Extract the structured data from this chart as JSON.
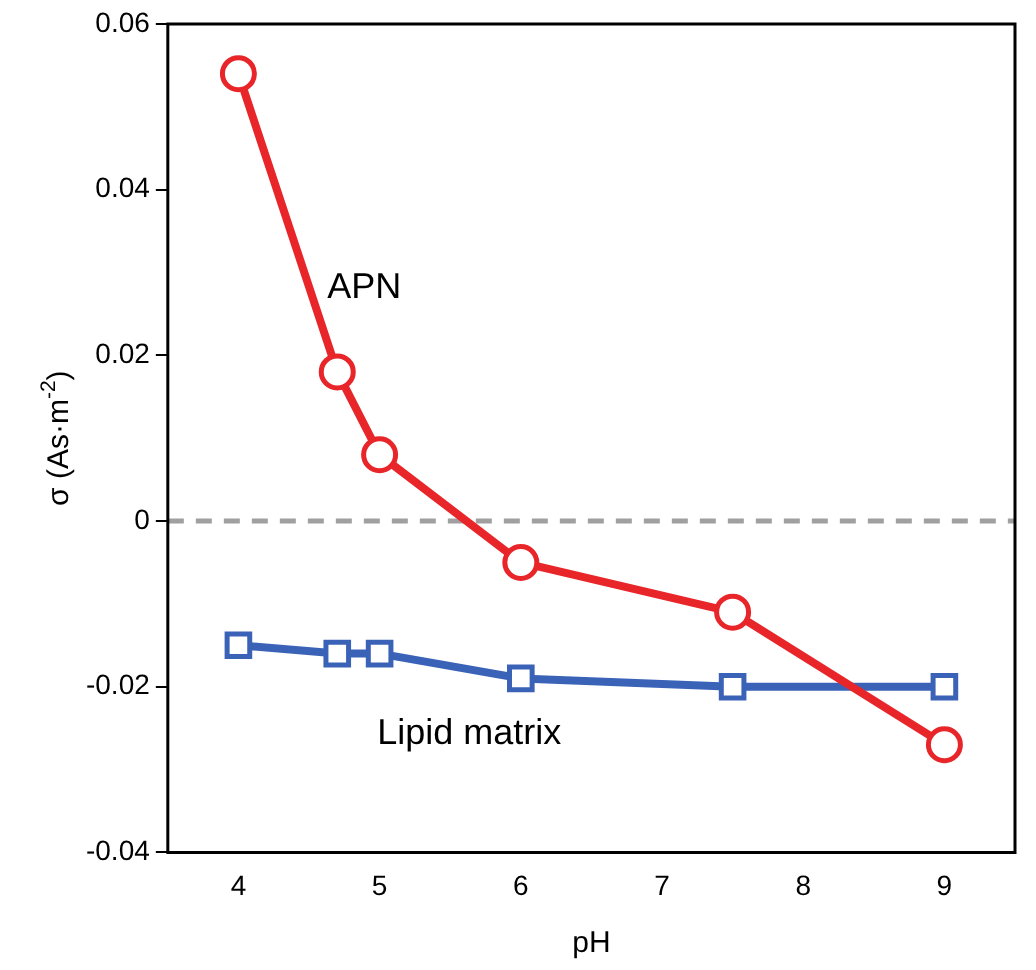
{
  "chart_data": {
    "type": "line",
    "xlabel": "pH",
    "ylabel": "σ (As·m$^{-2}$)",
    "xlim": [
      3.5,
      9.5
    ],
    "xticks": [
      4,
      5,
      6,
      7,
      8,
      9
    ],
    "ylim": [
      -0.04,
      0.06
    ],
    "yticks": [
      -0.04,
      -0.02,
      0,
      0.02,
      0.04,
      0.06
    ],
    "grid": false,
    "legend": false,
    "ref_lines": [
      {
        "axis": "y",
        "value": 0,
        "color": "#a0a0a0",
        "line_style": "dashed"
      }
    ],
    "series": [
      {
        "name": "APN",
        "color": "#e8262a",
        "marker": "circle",
        "x": [
          4,
          4.7,
          5,
          6,
          7.5,
          9
        ],
        "values": [
          0.054,
          0.018,
          0.008,
          -0.005,
          -0.011,
          -0.027
        ]
      },
      {
        "name": "Lipid matrix",
        "color": "#3a63b8",
        "marker": "square",
        "x": [
          4,
          4.7,
          5,
          6,
          7.5,
          9
        ],
        "values": [
          -0.015,
          -0.016,
          -0.016,
          -0.019,
          -0.02,
          -0.02
        ]
      }
    ]
  }
}
